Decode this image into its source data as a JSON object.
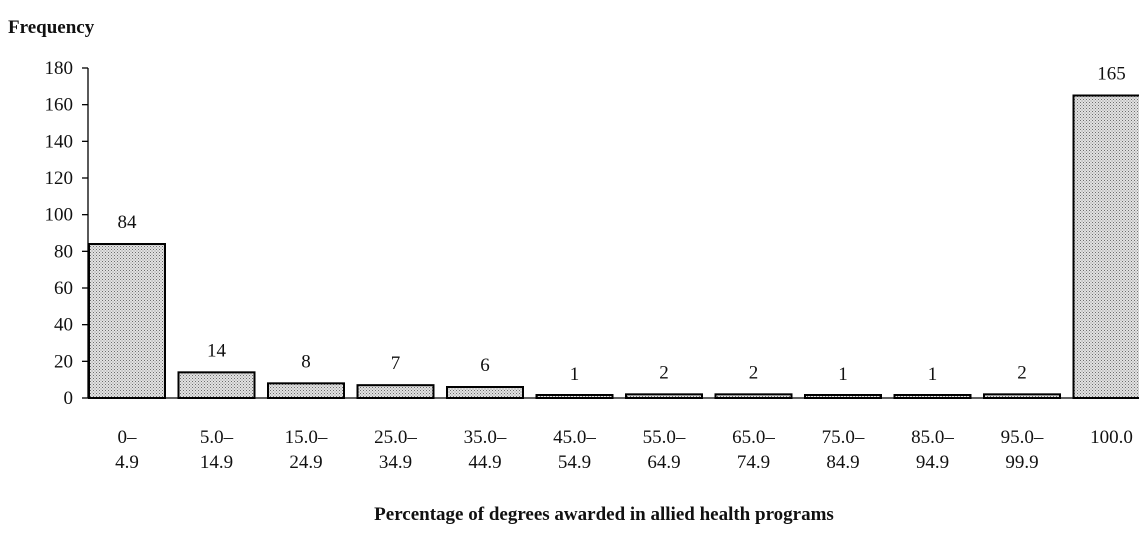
{
  "chart_data": {
    "type": "bar",
    "ylabel": "Frequency",
    "xlabel": "Percentage of degrees awarded in allied health programs",
    "ylim": [
      0,
      180
    ],
    "yticks": [
      0,
      20,
      40,
      60,
      80,
      100,
      120,
      140,
      160,
      180
    ],
    "categories": [
      [
        "0–",
        "4.9"
      ],
      [
        "5.0–",
        "14.9"
      ],
      [
        "15.0–",
        "24.9"
      ],
      [
        "25.0–",
        "34.9"
      ],
      [
        "35.0–",
        "44.9"
      ],
      [
        "45.0–",
        "54.9"
      ],
      [
        "55.0–",
        "64.9"
      ],
      [
        "65.0–",
        "74.9"
      ],
      [
        "75.0–",
        "84.9"
      ],
      [
        "85.0–",
        "94.9"
      ],
      [
        "95.0–",
        "99.9"
      ],
      [
        "100.0",
        ""
      ]
    ],
    "values": [
      84,
      14,
      8,
      7,
      6,
      1,
      2,
      2,
      1,
      1,
      2,
      165
    ],
    "data_labels": [
      "84",
      "14",
      "8",
      "7",
      "6",
      "1",
      "2",
      "2",
      "1",
      "1",
      "2",
      "165"
    ],
    "grid": false,
    "legend": "none",
    "bar_fill": "#d6d6d6",
    "bar_stroke": "#000000"
  }
}
